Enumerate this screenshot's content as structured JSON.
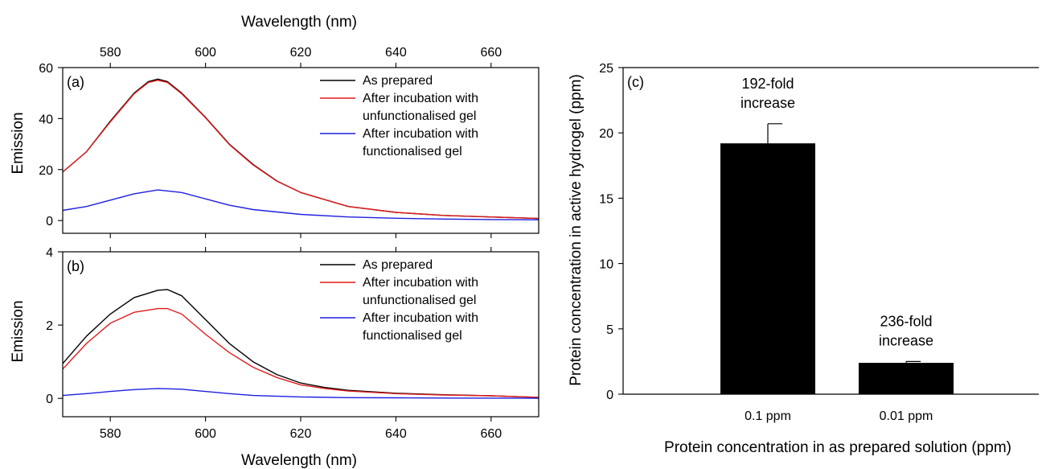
{
  "chart_data": [
    {
      "panel": "(a)",
      "type": "line",
      "xlabel": "",
      "top_xlabel": "Wavelength (nm)",
      "ylabel": "Emission",
      "xlim": [
        570,
        670
      ],
      "ylim": [
        -5,
        60
      ],
      "xticks": [
        580,
        600,
        620,
        640,
        660
      ],
      "yticks": [
        0,
        20,
        40,
        60
      ],
      "legend_position": "top-right",
      "series": [
        {
          "name": "As prepared",
          "color": "#000000",
          "x": [
            570,
            575,
            580,
            585,
            588,
            590,
            592,
            595,
            600,
            605,
            610,
            615,
            620,
            630,
            640,
            650,
            660,
            670
          ],
          "y": [
            19,
            27,
            39,
            50,
            54.5,
            55.5,
            54.5,
            50,
            40.5,
            30,
            22,
            15.5,
            11,
            5.5,
            3.2,
            2,
            1.4,
            0.8
          ]
        },
        {
          "name": "After incubation with unfunctionalised gel",
          "color": "#e31a1c",
          "x": [
            570,
            575,
            580,
            585,
            588,
            590,
            592,
            595,
            600,
            605,
            610,
            615,
            620,
            630,
            640,
            650,
            660,
            670
          ],
          "y": [
            19,
            27,
            38.7,
            49.7,
            54.2,
            55,
            54.2,
            49.7,
            40.3,
            29.8,
            21.8,
            15.4,
            11,
            5.5,
            3.2,
            2,
            1.4,
            0.8
          ]
        },
        {
          "name": "After incubation with functionalised gel",
          "color": "#1f1fe0",
          "x": [
            570,
            575,
            580,
            585,
            590,
            595,
            600,
            605,
            610,
            620,
            630,
            640,
            650,
            660,
            670
          ],
          "y": [
            4,
            5.5,
            8,
            10.5,
            12,
            11,
            8.5,
            6,
            4.3,
            2.4,
            1.4,
            0.9,
            0.6,
            0.4,
            0.3
          ]
        }
      ]
    },
    {
      "panel": "(b)",
      "type": "line",
      "xlabel": "Wavelength (nm)",
      "ylabel": "Emission",
      "xlim": [
        570,
        670
      ],
      "ylim": [
        -0.5,
        4
      ],
      "xticks": [
        580,
        600,
        620,
        640,
        660
      ],
      "yticks": [
        0,
        2,
        4
      ],
      "legend_position": "top-right",
      "series": [
        {
          "name": "As prepared",
          "color": "#000000",
          "x": [
            570,
            575,
            580,
            585,
            590,
            592,
            595,
            600,
            605,
            610,
            615,
            620,
            625,
            630,
            640,
            650,
            660,
            670
          ],
          "y": [
            0.95,
            1.7,
            2.3,
            2.75,
            2.95,
            2.97,
            2.8,
            2.15,
            1.5,
            1.0,
            0.65,
            0.42,
            0.3,
            0.22,
            0.14,
            0.1,
            0.07,
            0.03
          ]
        },
        {
          "name": "After incubation with unfunctionalised gel",
          "color": "#e31a1c",
          "x": [
            570,
            575,
            580,
            585,
            590,
            592,
            595,
            600,
            605,
            610,
            615,
            620,
            625,
            630,
            640,
            650,
            660,
            670
          ],
          "y": [
            0.8,
            1.5,
            2.05,
            2.35,
            2.45,
            2.45,
            2.3,
            1.75,
            1.25,
            0.85,
            0.57,
            0.37,
            0.27,
            0.2,
            0.13,
            0.09,
            0.07,
            0.03
          ]
        },
        {
          "name": "After incubation with functionalised gel",
          "color": "#1f1fe0",
          "x": [
            570,
            575,
            580,
            585,
            590,
            595,
            600,
            605,
            610,
            620,
            630,
            640,
            650,
            660,
            670
          ],
          "y": [
            0.08,
            0.13,
            0.19,
            0.24,
            0.27,
            0.25,
            0.19,
            0.13,
            0.08,
            0.04,
            0.02,
            0.015,
            0.01,
            0.008,
            0.005
          ]
        }
      ]
    },
    {
      "panel": "(c)",
      "type": "bar",
      "xlabel": "Protein concentration in as prepared solution (ppm)",
      "ylabel": "Protein concentration in active hydrogel (ppm)",
      "ylim": [
        0,
        25
      ],
      "yticks": [
        0,
        5,
        10,
        15,
        20,
        25
      ],
      "categories": [
        "0.1 ppm",
        "0.01 ppm"
      ],
      "values": [
        19.2,
        2.4
      ],
      "error": [
        1.5,
        0.1
      ],
      "bar_color": "#000000",
      "annotations": [
        {
          "category": "0.1 ppm",
          "lines": [
            "192-fold",
            "increase"
          ]
        },
        {
          "category": "0.01 ppm",
          "lines": [
            "236-fold",
            "increase"
          ]
        }
      ]
    }
  ]
}
